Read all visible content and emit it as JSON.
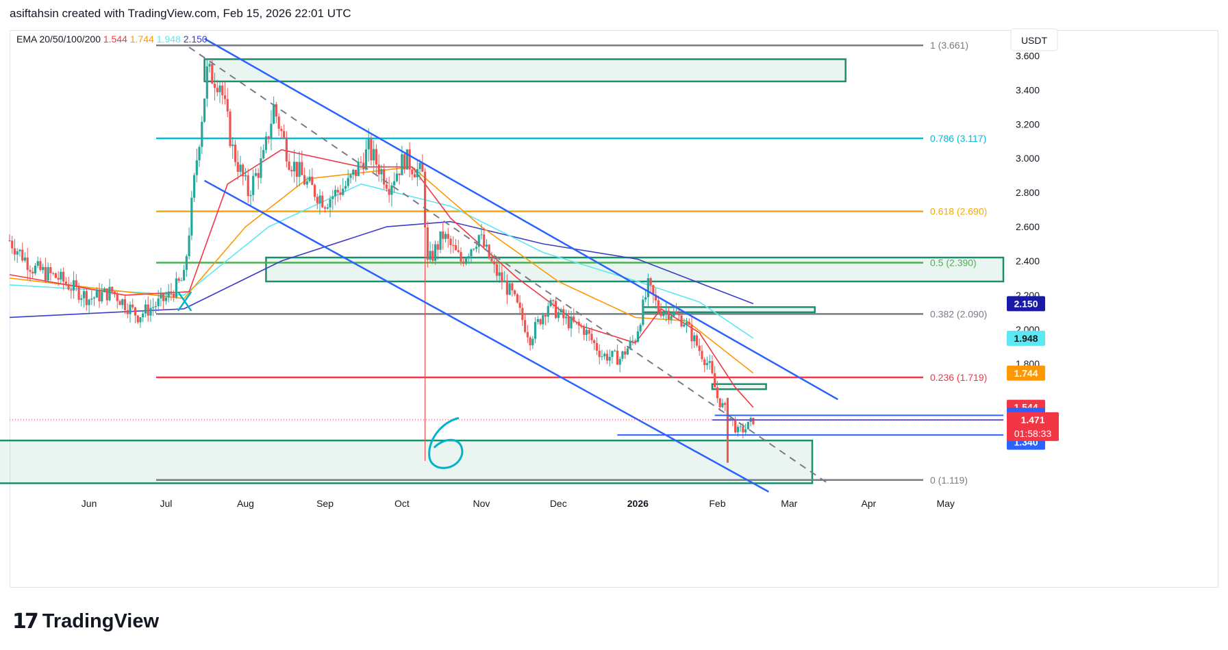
{
  "header": {
    "caption": "asiftahsin created with TradingView.com, Feb 15, 2026 22:01 UTC"
  },
  "brand": {
    "name": "TradingView",
    "mark": "17"
  },
  "colors": {
    "ema20": "#f23645",
    "ema50": "#ff9800",
    "ema100": "#5ae8f2",
    "ema200": "#3c3cc8",
    "up": "#26a69a",
    "down": "#ef5350",
    "channel": "#2962ff",
    "zone": "#1a8f6e"
  },
  "chart_data": {
    "type": "candlestick",
    "symbol_currency": "USDT",
    "indicator": {
      "label": "EMA 20/50/100/200",
      "values": [
        "1.544",
        "1.744",
        "1.948",
        "2.150"
      ]
    },
    "x_ticks": [
      "Jun",
      "Jul",
      "Aug",
      "Sep",
      "Oct",
      "Nov",
      "Dec",
      "2026",
      "Feb",
      "Mar",
      "Apr",
      "May"
    ],
    "y_ticks": [
      "3.600",
      "3.400",
      "3.200",
      "3.000",
      "2.800",
      "2.600",
      "2.400",
      "2.200",
      "2.000",
      "1.800"
    ],
    "ylim": [
      1.05,
      3.75
    ],
    "fib_levels": [
      {
        "ratio": 1,
        "price": 3.661,
        "label": "1 (3.661)",
        "color": "#787b86"
      },
      {
        "ratio": 0.786,
        "price": 3.117,
        "label": "0.786 (3.117)",
        "color": "#00bcd4"
      },
      {
        "ratio": 0.618,
        "price": 2.69,
        "label": "0.618 (2.690)",
        "color": "#f5a800"
      },
      {
        "ratio": 0.5,
        "price": 2.39,
        "label": "0.5 (2.390)",
        "color": "#4caf50"
      },
      {
        "ratio": 0.382,
        "price": 2.09,
        "label": "0.382 (2.090)",
        "color": "#787b86"
      },
      {
        "ratio": 0.236,
        "price": 1.719,
        "label": "0.236 (1.719)",
        "color": "#f23645"
      },
      {
        "ratio": 0,
        "price": 1.119,
        "label": "0 (1.119)",
        "color": "#787b86"
      }
    ],
    "price_badges": [
      {
        "text": "2.150",
        "price": 2.15,
        "color": "#1a1aa8",
        "text_color": "#ffffff"
      },
      {
        "text": "1.948",
        "price": 1.948,
        "color": "#5ae8f2",
        "text_color": "#131722"
      },
      {
        "text": "1.744",
        "price": 1.744,
        "color": "#ff9800",
        "text_color": "#ffffff"
      },
      {
        "text": "1.544",
        "price": 1.544,
        "color": "#f23645",
        "text_color": "#ffffff"
      },
      {
        "text": "1.497",
        "price": 1.497,
        "color": "#2962ff",
        "text_color": "#ffffff"
      },
      {
        "text": "1.453",
        "price": 1.453,
        "color": "#2962ff",
        "text_color": "#ffffff"
      },
      {
        "text": "1.340",
        "price": 1.34,
        "color": "#2962ff",
        "text_color": "#ffffff"
      }
    ],
    "last_price": {
      "price": "1.471",
      "countdown": "01:58:33",
      "value": 1.471
    },
    "annotation_text": "6",
    "pattern_marker": "X",
    "channel": {
      "upper": [
        [
          "2025-07-16",
          3.7
        ],
        [
          "2026-03-20",
          1.59
        ]
      ],
      "lower": [
        [
          "2025-07-16",
          2.87
        ],
        [
          "2026-02-21",
          1.05
        ]
      ]
    },
    "trendline_dashed": [
      [
        "2025-07-10",
        3.65
      ],
      [
        "2026-03-17",
        1.09
      ]
    ],
    "horizontal_rays": [
      {
        "price": 1.497,
        "from": "2026-01-31"
      },
      {
        "price": 1.47,
        "from": "2026-01-30"
      },
      {
        "price": 1.382,
        "from": "2025-12-24"
      }
    ],
    "zones": [
      {
        "top": 3.58,
        "bottom": 3.45,
        "from": "2025-07-16",
        "to": "2026-03-23"
      },
      {
        "top": 2.42,
        "bottom": 2.28,
        "from": "2025-08-09",
        "to": "2026-05-31"
      },
      {
        "top": 2.13,
        "bottom": 2.1,
        "from": "2026-01-03",
        "to": "2026-03-11"
      },
      {
        "top": 1.68,
        "bottom": 1.65,
        "from": "2026-01-30",
        "to": "2026-02-20"
      },
      {
        "top": 1.35,
        "bottom": 1.1,
        "from": "2025-04-20",
        "to": "2026-03-10"
      }
    ],
    "price_path": [
      [
        "2025-05-01",
        2.52
      ],
      [
        "2025-05-10",
        2.36
      ],
      [
        "2025-05-20",
        2.3
      ],
      [
        "2025-06-01",
        2.18
      ],
      [
        "2025-06-10",
        2.22
      ],
      [
        "2025-06-20",
        2.08
      ],
      [
        "2025-07-01",
        2.18
      ],
      [
        "2025-07-08",
        2.3
      ],
      [
        "2025-07-13",
        3.0
      ],
      [
        "2025-07-17",
        3.5
      ],
      [
        "2025-07-22",
        3.45
      ],
      [
        "2025-07-27",
        3.05
      ],
      [
        "2025-08-02",
        2.8
      ],
      [
        "2025-08-08",
        3.0
      ],
      [
        "2025-08-12",
        3.3
      ],
      [
        "2025-08-18",
        3.0
      ],
      [
        "2025-08-25",
        2.85
      ],
      [
        "2025-09-01",
        2.75
      ],
      [
        "2025-09-10",
        2.85
      ],
      [
        "2025-09-18",
        3.05
      ],
      [
        "2025-09-26",
        2.85
      ],
      [
        "2025-10-02",
        3.0
      ],
      [
        "2025-10-09",
        2.9
      ],
      [
        "2025-10-11",
        2.38
      ],
      [
        "2025-10-17",
        2.55
      ],
      [
        "2025-10-24",
        2.4
      ],
      [
        "2025-10-31",
        2.55
      ],
      [
        "2025-11-06",
        2.35
      ],
      [
        "2025-11-13",
        2.2
      ],
      [
        "2025-11-20",
        1.95
      ],
      [
        "2025-11-27",
        2.15
      ],
      [
        "2025-12-04",
        2.05
      ],
      [
        "2025-12-11",
        2.0
      ],
      [
        "2025-12-18",
        1.85
      ],
      [
        "2025-12-25",
        1.83
      ],
      [
        "2025-12-31",
        1.95
      ],
      [
        "2026-01-05",
        2.25
      ],
      [
        "2026-01-09",
        2.12
      ],
      [
        "2026-01-14",
        2.1
      ],
      [
        "2026-01-19",
        2.05
      ],
      [
        "2026-01-25",
        1.88
      ],
      [
        "2026-01-29",
        1.78
      ],
      [
        "2026-02-01",
        1.6
      ],
      [
        "2026-02-03",
        1.55
      ],
      [
        "2026-02-06",
        1.48
      ],
      [
        "2026-02-09",
        1.4
      ],
      [
        "2026-02-12",
        1.42
      ],
      [
        "2026-02-15",
        1.471
      ]
    ],
    "ema20_path": [
      [
        "2025-05-01",
        2.32
      ],
      [
        "2025-06-15",
        2.2
      ],
      [
        "2025-07-10",
        2.22
      ],
      [
        "2025-07-25",
        2.85
      ],
      [
        "2025-08-15",
        3.05
      ],
      [
        "2025-09-15",
        2.95
      ],
      [
        "2025-10-05",
        2.95
      ],
      [
        "2025-10-20",
        2.65
      ],
      [
        "2025-11-15",
        2.3
      ],
      [
        "2025-12-10",
        2.02
      ],
      [
        "2025-12-31",
        1.92
      ],
      [
        "2026-01-10",
        2.12
      ],
      [
        "2026-01-25",
        1.98
      ],
      [
        "2026-02-08",
        1.66
      ],
      [
        "2026-02-15",
        1.544
      ]
    ],
    "ema50_path": [
      [
        "2025-05-01",
        2.3
      ],
      [
        "2025-07-08",
        2.18
      ],
      [
        "2025-08-01",
        2.6
      ],
      [
        "2025-08-25",
        2.88
      ],
      [
        "2025-10-05",
        2.95
      ],
      [
        "2025-11-01",
        2.6
      ],
      [
        "2025-12-01",
        2.28
      ],
      [
        "2025-12-31",
        2.07
      ],
      [
        "2026-01-20",
        2.05
      ],
      [
        "2026-02-15",
        1.744
      ]
    ],
    "ema100_path": [
      [
        "2025-05-01",
        2.26
      ],
      [
        "2025-07-08",
        2.2
      ],
      [
        "2025-08-10",
        2.6
      ],
      [
        "2025-09-15",
        2.85
      ],
      [
        "2025-10-20",
        2.72
      ],
      [
        "2025-11-25",
        2.45
      ],
      [
        "2026-01-01",
        2.28
      ],
      [
        "2026-01-25",
        2.16
      ],
      [
        "2026-02-15",
        1.948
      ]
    ],
    "ema200_path": [
      [
        "2025-05-01",
        2.07
      ],
      [
        "2025-07-08",
        2.12
      ],
      [
        "2025-08-15",
        2.4
      ],
      [
        "2025-09-25",
        2.6
      ],
      [
        "2025-10-20",
        2.63
      ],
      [
        "2025-11-25",
        2.5
      ],
      [
        "2026-01-01",
        2.41
      ],
      [
        "2026-02-15",
        2.15
      ]
    ]
  }
}
